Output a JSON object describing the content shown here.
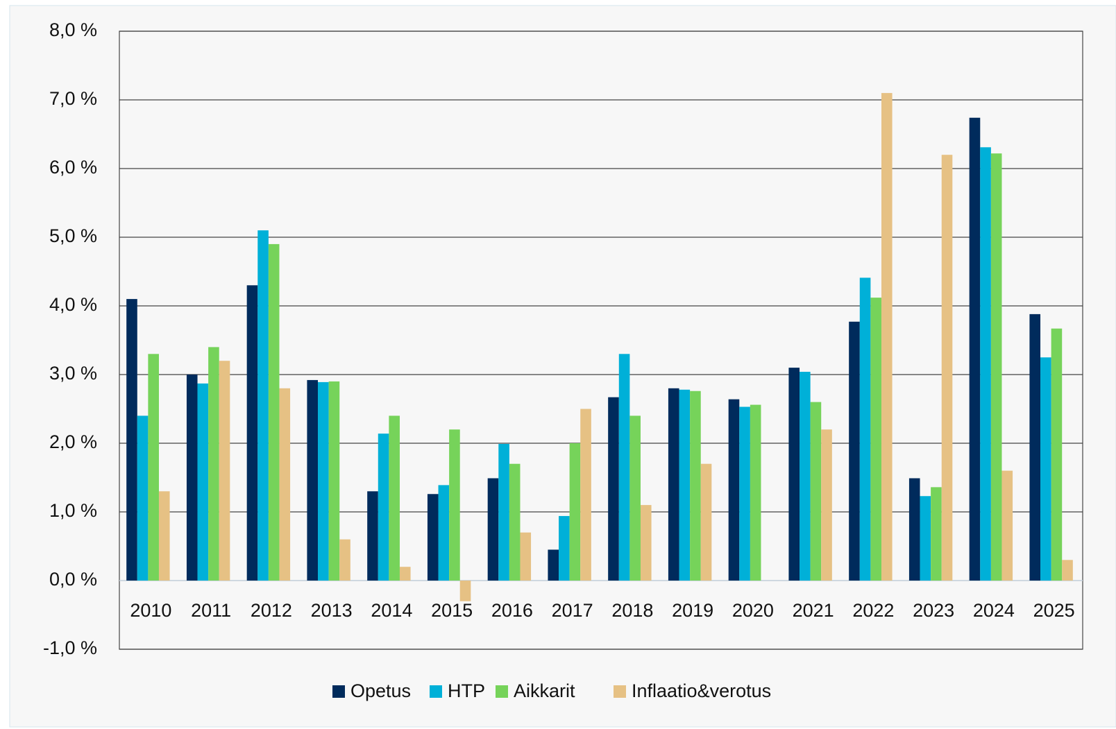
{
  "chart_data": {
    "type": "bar",
    "categories": [
      "2010",
      "2011",
      "2012",
      "2013",
      "2014",
      "2015",
      "2016",
      "2017",
      "2018",
      "2019",
      "2020",
      "2021",
      "2022",
      "2023",
      "2024",
      "2025"
    ],
    "series": [
      {
        "name": "Opetus",
        "color": "#002b5c",
        "values": [
          4.1,
          3.0,
          4.3,
          2.92,
          1.3,
          1.26,
          1.49,
          0.45,
          2.67,
          2.8,
          2.64,
          3.1,
          3.77,
          1.49,
          6.74,
          3.88
        ]
      },
      {
        "name": "HTP",
        "color": "#00b0d8",
        "values": [
          2.4,
          2.87,
          5.1,
          2.89,
          2.14,
          1.39,
          1.99,
          0.94,
          3.3,
          2.78,
          2.53,
          3.04,
          4.41,
          1.23,
          6.31,
          3.25
        ]
      },
      {
        "name": "Aikkarit",
        "color": "#76d35a",
        "values": [
          3.3,
          3.4,
          4.9,
          2.9,
          2.4,
          2.2,
          1.7,
          2.0,
          2.4,
          2.76,
          2.56,
          2.6,
          4.12,
          1.36,
          6.22,
          3.67
        ]
      },
      {
        "name": "Inflaatio&verotus",
        "color": "#e6c184",
        "values": [
          1.3,
          3.2,
          2.8,
          0.6,
          0.2,
          -0.3,
          0.7,
          2.5,
          1.1,
          1.7,
          0,
          2.2,
          7.1,
          6.2,
          1.6,
          0.3
        ]
      }
    ],
    "ylim": [
      -1,
      8
    ],
    "yticks": [
      {
        "value": -1,
        "label": "-1,0 %"
      },
      {
        "value": 0,
        "label": "0,0 %"
      },
      {
        "value": 1,
        "label": "1,0 %"
      },
      {
        "value": 2,
        "label": "2,0 %"
      },
      {
        "value": 3,
        "label": "3,0 %"
      },
      {
        "value": 4,
        "label": "4,0 %"
      },
      {
        "value": 5,
        "label": "5,0 %"
      },
      {
        "value": 6,
        "label": "6,0 %"
      },
      {
        "value": 7,
        "label": "7,0 %"
      },
      {
        "value": 8,
        "label": "8,0 %"
      }
    ],
    "grid": true,
    "legend": "bottom"
  }
}
